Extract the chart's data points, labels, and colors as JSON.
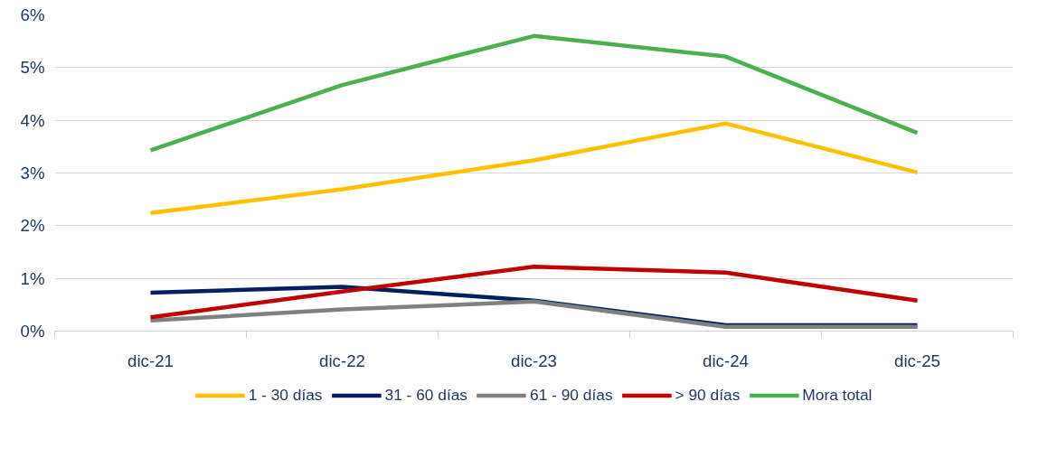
{
  "chart_data": {
    "type": "line",
    "categories": [
      "dic-21",
      "dic-22",
      "dic-23",
      "dic-24",
      "dic-25"
    ],
    "ylim": [
      0,
      6
    ],
    "yticks": [
      {
        "value": 0,
        "label": "0%"
      },
      {
        "value": 1,
        "label": "1%"
      },
      {
        "value": 2,
        "label": "2%"
      },
      {
        "value": 3,
        "label": "3%"
      },
      {
        "value": 4,
        "label": "4%"
      },
      {
        "value": 5,
        "label": "5%"
      },
      {
        "value": 6,
        "label": "6%"
      }
    ],
    "grid": "y",
    "legend": "bottom",
    "marker": "none",
    "line_style": "solid",
    "series": [
      {
        "name": "1 - 30 días",
        "color": "#ffc000",
        "values": [
          2.24,
          2.69,
          3.24,
          3.94,
          3.01
        ]
      },
      {
        "name": "31 - 60 días",
        "color": "#002060",
        "values": [
          0.73,
          0.84,
          0.58,
          0.11,
          0.11
        ]
      },
      {
        "name": "61 - 90 días",
        "color": "#808080",
        "values": [
          0.2,
          0.41,
          0.56,
          0.08,
          0.08
        ]
      },
      {
        "name": "> 90 días",
        "color": "#c00000",
        "values": [
          0.26,
          0.75,
          1.22,
          1.11,
          0.58
        ]
      },
      {
        "name": "Mora total",
        "color": "#4caf50",
        "values": [
          3.43,
          4.67,
          5.6,
          5.21,
          3.76
        ]
      }
    ]
  }
}
